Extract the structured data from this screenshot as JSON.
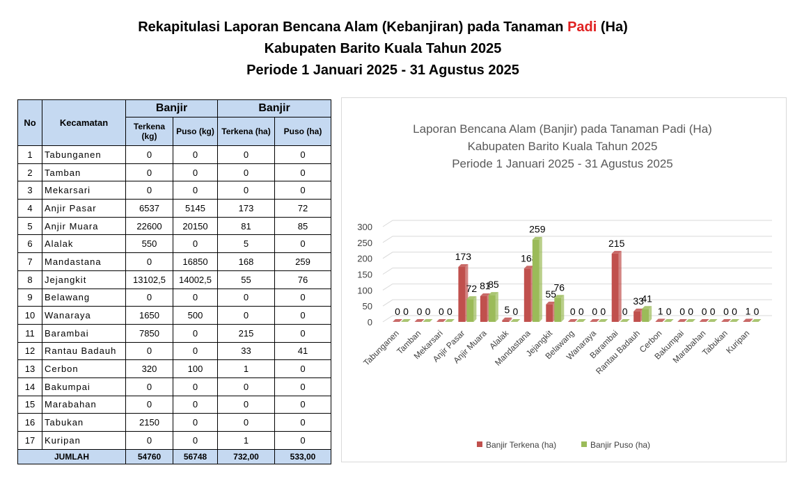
{
  "header": {
    "title_parts": [
      "Rekapitulasi Laporan Bencana Alam (Kebanjiran)  pada Tanaman ",
      "Padi",
      " (Ha)"
    ],
    "line2": "Kabupaten Barito Kuala Tahun 2025",
    "line3": "Periode 1 Januari 2025 - 31 Agustus 2025"
  },
  "table": {
    "head": {
      "no": "No",
      "kecamatan": "Kecamatan",
      "group1": "Banjir",
      "group2": "Banjir",
      "cols": [
        "Terkena (kg)",
        "Puso (kg)",
        "Terkena (ha)",
        "Puso (ha)"
      ]
    },
    "rows": [
      [
        "1",
        "Tabunganen",
        "0",
        "0",
        "0",
        "0"
      ],
      [
        "2",
        "Tamban",
        "0",
        "0",
        "0",
        "0"
      ],
      [
        "3",
        "Mekarsari",
        "0",
        "0",
        "0",
        "0"
      ],
      [
        "4",
        "Anjir Pasar",
        "6537",
        "5145",
        "173",
        "72"
      ],
      [
        "5",
        "Anjir Muara",
        "22600",
        "20150",
        "81",
        "85"
      ],
      [
        "6",
        "Alalak",
        "550",
        "0",
        "5",
        "0"
      ],
      [
        "7",
        "Mandastana",
        "0",
        "16850",
        "168",
        "259"
      ],
      [
        "8",
        "Jejangkit",
        "13102,5",
        "14002,5",
        "55",
        "76"
      ],
      [
        "9",
        "Belawang",
        "0",
        "0",
        "0",
        "0"
      ],
      [
        "10",
        "Wanaraya",
        "1650",
        "500",
        "0",
        "0"
      ],
      [
        "11",
        "Barambai",
        "7850",
        "0",
        "215",
        "0"
      ],
      [
        "12",
        "Rantau Badauh",
        "0",
        "0",
        "33",
        "41"
      ],
      [
        "13",
        "Cerbon",
        "320",
        "100",
        "1",
        "0"
      ],
      [
        "14",
        "Bakumpai",
        "0",
        "0",
        "0",
        "0"
      ],
      [
        "15",
        "Marabahan",
        "0",
        "0",
        "0",
        "0"
      ],
      [
        "16",
        "Tabukan",
        "2150",
        "0",
        "0",
        "0"
      ],
      [
        "17",
        "Kuripan",
        "0",
        "0",
        "1",
        "0"
      ]
    ],
    "footer": [
      "JUMLAH",
      "54760",
      "56748",
      "732,00",
      "533,00"
    ]
  },
  "chart_data": {
    "type": "bar",
    "title": [
      "Laporan Bencana Alam (Banjir) pada Tanaman Padi (Ha)",
      "Kabupaten Barito Kuala Tahun 2025",
      "Periode 1 Januari 2025 - 31 Agustus 2025"
    ],
    "categories": [
      "Tabunganen",
      "Tamban",
      "Mekarsari",
      "Anjir Pasar",
      "Anjir Muara",
      "Alalak",
      "Mandastana",
      "Jejangkit",
      "Belawang",
      "Wanaraya",
      "Barambai",
      "Rantau Badauh",
      "Cerbon",
      "Bakumpai",
      "Marabahan",
      "Tabukan",
      "Kuripan"
    ],
    "series": [
      {
        "name": "Banjir Terkena (ha)",
        "color": "#c0504d",
        "values": [
          0,
          0,
          0,
          173,
          81,
          5,
          168,
          55,
          0,
          0,
          215,
          33,
          1,
          0,
          0,
          0,
          1
        ]
      },
      {
        "name": "Banjir Puso (ha)",
        "color": "#9bbb59",
        "values": [
          0,
          0,
          0,
          72,
          85,
          0,
          259,
          76,
          0,
          0,
          0,
          41,
          0,
          0,
          0,
          0,
          0
        ]
      }
    ],
    "ylim": [
      0,
      300
    ],
    "yticks": [
      0,
      50,
      100,
      150,
      200,
      250,
      300
    ],
    "grid": true,
    "legend": "bottom"
  }
}
